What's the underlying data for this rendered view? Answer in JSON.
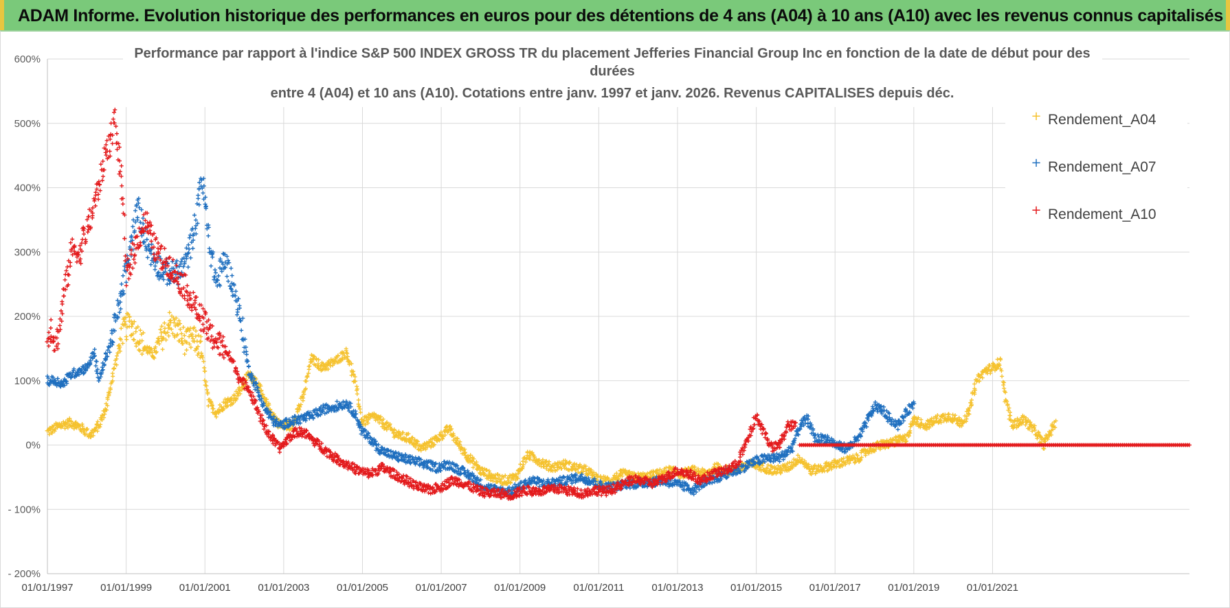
{
  "header": {
    "title": "ADAM Informe. Evolution historique des performances en euros pour des détentions de 4 ans (A04) à 10 ans (A10) avec les revenus connus capitalisés"
  },
  "chart_data": {
    "type": "scatter",
    "title_lines": [
      "Performance par rapport à l'indice S&P 500 INDEX GROSS TR  du placement Jefferies Financial Group Inc en fonction de la date de début pour des",
      "durées",
      "entre 4 (A04) et 10 ans (A10).  Cotations entre janv. 1997 et janv. 2026. Revenus CAPITALISES depuis déc."
    ],
    "ylim": [
      -200,
      600
    ],
    "y_ticks": [
      600,
      500,
      400,
      300,
      200,
      100,
      0,
      -100,
      -200
    ],
    "y_tick_labels": [
      "600%",
      "500%",
      "400%",
      "300%",
      "200%",
      "100%",
      "0%",
      "- 100%",
      "- 200%"
    ],
    "xlim": [
      1997.0,
      2026.0
    ],
    "x_ticks": [
      1997,
      1999,
      2001,
      2003,
      2005,
      2007,
      2009,
      2011,
      2013,
      2015,
      2017,
      2019,
      2021
    ],
    "x_tick_labels": [
      "01/01/1997",
      "01/01/1999",
      "01/01/2001",
      "01/01/2003",
      "01/01/2005",
      "01/01/2007",
      "01/01/2009",
      "01/01/2011",
      "01/01/2013",
      "01/01/2015",
      "01/01/2017",
      "01/01/2019",
      "01/01/2021"
    ],
    "grid": true,
    "legend_position": "top-right",
    "series": [
      {
        "name": "Rendement_A04",
        "color": "#f5c22f",
        "end": 2022.6,
        "points": [
          [
            1997.0,
            20
          ],
          [
            1997.3,
            30
          ],
          [
            1997.6,
            35
          ],
          [
            1997.9,
            25
          ],
          [
            1998.1,
            15
          ],
          [
            1998.3,
            30
          ],
          [
            1998.5,
            60
          ],
          [
            1998.7,
            120
          ],
          [
            1998.9,
            175
          ],
          [
            1999.1,
            190
          ],
          [
            1999.3,
            170
          ],
          [
            1999.5,
            150
          ],
          [
            1999.7,
            140
          ],
          [
            1999.9,
            165
          ],
          [
            2000.1,
            190
          ],
          [
            2000.3,
            180
          ],
          [
            2000.5,
            160
          ],
          [
            2000.7,
            165
          ],
          [
            2000.9,
            150
          ],
          [
            2001.1,
            65
          ],
          [
            2001.3,
            50
          ],
          [
            2001.5,
            65
          ],
          [
            2001.7,
            70
          ],
          [
            2001.9,
            85
          ],
          [
            2002.1,
            110
          ],
          [
            2002.3,
            100
          ],
          [
            2002.5,
            70
          ],
          [
            2002.7,
            50
          ],
          [
            2002.9,
            30
          ],
          [
            2003.2,
            30
          ],
          [
            2003.5,
            75
          ],
          [
            2003.7,
            135
          ],
          [
            2004.0,
            120
          ],
          [
            2004.3,
            130
          ],
          [
            2004.6,
            145
          ],
          [
            2004.8,
            100
          ],
          [
            2005.0,
            35
          ],
          [
            2005.3,
            45
          ],
          [
            2005.6,
            30
          ],
          [
            2005.9,
            15
          ],
          [
            2006.2,
            10
          ],
          [
            2006.5,
            -5
          ],
          [
            2006.8,
            5
          ],
          [
            2007.0,
            15
          ],
          [
            2007.2,
            25
          ],
          [
            2007.4,
            5
          ],
          [
            2007.7,
            -20
          ],
          [
            2008.0,
            -40
          ],
          [
            2008.3,
            -50
          ],
          [
            2008.6,
            -55
          ],
          [
            2008.9,
            -50
          ],
          [
            2009.2,
            -15
          ],
          [
            2009.5,
            -25
          ],
          [
            2009.8,
            -35
          ],
          [
            2010.1,
            -30
          ],
          [
            2010.4,
            -35
          ],
          [
            2010.7,
            -40
          ],
          [
            2011.0,
            -55
          ],
          [
            2011.3,
            -55
          ],
          [
            2011.6,
            -45
          ],
          [
            2011.9,
            -50
          ],
          [
            2012.2,
            -50
          ],
          [
            2012.5,
            -45
          ],
          [
            2012.8,
            -40
          ],
          [
            2013.1,
            -45
          ],
          [
            2013.4,
            -40
          ],
          [
            2013.7,
            -45
          ],
          [
            2014.0,
            -35
          ],
          [
            2014.3,
            -40
          ],
          [
            2014.6,
            -35
          ],
          [
            2014.9,
            -30
          ],
          [
            2015.2,
            -35
          ],
          [
            2015.5,
            -40
          ],
          [
            2015.8,
            -35
          ],
          [
            2016.1,
            -20
          ],
          [
            2016.4,
            -40
          ],
          [
            2016.7,
            -35
          ],
          [
            2017.0,
            -30
          ],
          [
            2017.3,
            -25
          ],
          [
            2017.6,
            -20
          ],
          [
            2017.9,
            -5
          ],
          [
            2018.2,
            0
          ],
          [
            2018.5,
            5
          ],
          [
            2018.8,
            10
          ],
          [
            2019.0,
            40
          ],
          [
            2019.3,
            30
          ],
          [
            2019.6,
            40
          ],
          [
            2019.9,
            45
          ],
          [
            2020.2,
            35
          ],
          [
            2020.4,
            50
          ],
          [
            2020.6,
            100
          ],
          [
            2020.8,
            115
          ],
          [
            2021.0,
            120
          ],
          [
            2021.2,
            130
          ],
          [
            2021.3,
            80
          ],
          [
            2021.5,
            30
          ],
          [
            2021.8,
            40
          ],
          [
            2022.1,
            20
          ],
          [
            2022.3,
            0
          ],
          [
            2022.5,
            25
          ],
          [
            2022.6,
            35
          ]
        ]
      },
      {
        "name": "Rendement_A07",
        "color": "#1f6fbf",
        "end": 2019.0,
        "points": [
          [
            1997.0,
            100
          ],
          [
            1997.2,
            100
          ],
          [
            1997.4,
            95
          ],
          [
            1997.6,
            110
          ],
          [
            1997.8,
            115
          ],
          [
            1998.0,
            120
          ],
          [
            1998.2,
            145
          ],
          [
            1998.3,
            100
          ],
          [
            1998.5,
            140
          ],
          [
            1998.7,
            180
          ],
          [
            1998.9,
            240
          ],
          [
            1999.1,
            300
          ],
          [
            1999.3,
            370
          ],
          [
            1999.4,
            340
          ],
          [
            1999.6,
            300
          ],
          [
            1999.8,
            280
          ],
          [
            2000.0,
            270
          ],
          [
            2000.2,
            265
          ],
          [
            2000.4,
            270
          ],
          [
            2000.6,
            300
          ],
          [
            2000.8,
            360
          ],
          [
            2000.9,
            420
          ],
          [
            2001.0,
            380
          ],
          [
            2001.1,
            320
          ],
          [
            2001.3,
            250
          ],
          [
            2001.5,
            290
          ],
          [
            2001.7,
            250
          ],
          [
            2001.9,
            200
          ],
          [
            2002.1,
            120
          ],
          [
            2002.3,
            90
          ],
          [
            2002.5,
            60
          ],
          [
            2002.7,
            40
          ],
          [
            2002.9,
            30
          ],
          [
            2003.1,
            35
          ],
          [
            2003.4,
            40
          ],
          [
            2003.7,
            45
          ],
          [
            2004.0,
            55
          ],
          [
            2004.3,
            60
          ],
          [
            2004.6,
            65
          ],
          [
            2004.8,
            50
          ],
          [
            2005.0,
            20
          ],
          [
            2005.2,
            10
          ],
          [
            2005.4,
            -5
          ],
          [
            2005.7,
            -15
          ],
          [
            2006.0,
            -20
          ],
          [
            2006.3,
            -25
          ],
          [
            2006.6,
            -30
          ],
          [
            2006.9,
            -35
          ],
          [
            2007.2,
            -30
          ],
          [
            2007.5,
            -40
          ],
          [
            2007.8,
            -50
          ],
          [
            2008.1,
            -65
          ],
          [
            2008.4,
            -70
          ],
          [
            2008.7,
            -72
          ],
          [
            2009.0,
            -65
          ],
          [
            2009.3,
            -55
          ],
          [
            2009.6,
            -60
          ],
          [
            2009.9,
            -58
          ],
          [
            2010.2,
            -55
          ],
          [
            2010.5,
            -50
          ],
          [
            2010.8,
            -55
          ],
          [
            2011.1,
            -65
          ],
          [
            2011.4,
            -65
          ],
          [
            2011.7,
            -60
          ],
          [
            2012.0,
            -60
          ],
          [
            2012.3,
            -58
          ],
          [
            2012.6,
            -55
          ],
          [
            2012.9,
            -60
          ],
          [
            2013.2,
            -65
          ],
          [
            2013.4,
            -70
          ],
          [
            2013.6,
            -60
          ],
          [
            2013.9,
            -55
          ],
          [
            2014.2,
            -45
          ],
          [
            2014.5,
            -40
          ],
          [
            2014.8,
            -30
          ],
          [
            2015.0,
            -25
          ],
          [
            2015.3,
            -20
          ],
          [
            2015.6,
            -20
          ],
          [
            2015.9,
            -5
          ],
          [
            2016.1,
            30
          ],
          [
            2016.3,
            40
          ],
          [
            2016.5,
            10
          ],
          [
            2016.8,
            10
          ],
          [
            2017.0,
            0
          ],
          [
            2017.3,
            -5
          ],
          [
            2017.6,
            10
          ],
          [
            2017.8,
            35
          ],
          [
            2018.0,
            60
          ],
          [
            2018.2,
            55
          ],
          [
            2018.4,
            40
          ],
          [
            2018.6,
            30
          ],
          [
            2018.8,
            50
          ],
          [
            2019.0,
            65
          ]
        ]
      },
      {
        "name": "Rendement_A10",
        "color": "#e31a1c",
        "end": 2016.0,
        "points": [
          [
            1997.0,
            165
          ],
          [
            1997.1,
            185
          ],
          [
            1997.2,
            155
          ],
          [
            1997.3,
            180
          ],
          [
            1997.4,
            230
          ],
          [
            1997.5,
            260
          ],
          [
            1997.6,
            300
          ],
          [
            1997.7,
            310
          ],
          [
            1997.8,
            290
          ],
          [
            1997.9,
            320
          ],
          [
            1998.0,
            335
          ],
          [
            1998.1,
            350
          ],
          [
            1998.2,
            380
          ],
          [
            1998.3,
            400
          ],
          [
            1998.4,
            430
          ],
          [
            1998.5,
            460
          ],
          [
            1998.6,
            470
          ],
          [
            1998.7,
            510
          ],
          [
            1998.8,
            450
          ],
          [
            1998.9,
            400
          ],
          [
            1999.0,
            260
          ],
          [
            1999.1,
            280
          ],
          [
            1999.3,
            320
          ],
          [
            1999.5,
            350
          ],
          [
            1999.7,
            310
          ],
          [
            1999.9,
            290
          ],
          [
            2000.1,
            280
          ],
          [
            2000.3,
            260
          ],
          [
            2000.5,
            245
          ],
          [
            2000.7,
            220
          ],
          [
            2000.9,
            200
          ],
          [
            2001.1,
            175
          ],
          [
            2001.3,
            160
          ],
          [
            2001.5,
            150
          ],
          [
            2001.7,
            130
          ],
          [
            2001.9,
            100
          ],
          [
            2002.1,
            90
          ],
          [
            2002.3,
            60
          ],
          [
            2002.5,
            30
          ],
          [
            2002.7,
            10
          ],
          [
            2002.9,
            -5
          ],
          [
            2003.1,
            10
          ],
          [
            2003.3,
            20
          ],
          [
            2003.5,
            20
          ],
          [
            2003.7,
            10
          ],
          [
            2003.9,
            0
          ],
          [
            2004.1,
            -10
          ],
          [
            2004.3,
            -20
          ],
          [
            2004.6,
            -30
          ],
          [
            2004.9,
            -40
          ],
          [
            2005.2,
            -45
          ],
          [
            2005.5,
            -35
          ],
          [
            2005.8,
            -45
          ],
          [
            2006.1,
            -55
          ],
          [
            2006.4,
            -65
          ],
          [
            2006.7,
            -70
          ],
          [
            2007.0,
            -65
          ],
          [
            2007.3,
            -55
          ],
          [
            2007.6,
            -60
          ],
          [
            2007.9,
            -70
          ],
          [
            2008.2,
            -75
          ],
          [
            2008.5,
            -75
          ],
          [
            2008.8,
            -78
          ],
          [
            2009.1,
            -70
          ],
          [
            2009.4,
            -72
          ],
          [
            2009.7,
            -70
          ],
          [
            2010.0,
            -68
          ],
          [
            2010.3,
            -72
          ],
          [
            2010.6,
            -75
          ],
          [
            2010.9,
            -70
          ],
          [
            2011.2,
            -72
          ],
          [
            2011.5,
            -65
          ],
          [
            2011.8,
            -55
          ],
          [
            2012.1,
            -55
          ],
          [
            2012.4,
            -60
          ],
          [
            2012.7,
            -50
          ],
          [
            2013.0,
            -40
          ],
          [
            2013.3,
            -45
          ],
          [
            2013.6,
            -55
          ],
          [
            2013.9,
            -45
          ],
          [
            2014.2,
            -40
          ],
          [
            2014.5,
            -30
          ],
          [
            2014.8,
            10
          ],
          [
            2015.0,
            45
          ],
          [
            2015.2,
            20
          ],
          [
            2015.4,
            -5
          ],
          [
            2015.6,
            0
          ],
          [
            2015.8,
            30
          ],
          [
            2016.0,
            30
          ]
        ]
      }
    ]
  }
}
